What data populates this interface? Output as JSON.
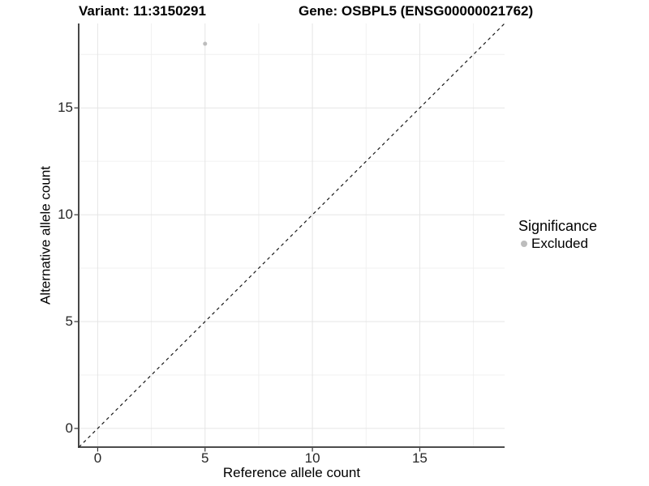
{
  "colors": {
    "background": "#ffffff",
    "axis_line": "#333333",
    "tick_mark": "#333333",
    "grid_major": "#e5e5e5",
    "grid_minor": "#f0f0f0",
    "identity_line": "#1a1a1a",
    "point_excluded": "#bdbdbd",
    "text": "#000000"
  },
  "chart_data": {
    "type": "scatter",
    "title_left": "Variant: 11:3150291",
    "title_right": "Gene: OSBPL5 (ENSG00000021762)",
    "xlabel": "Reference allele count",
    "ylabel": "Alternative allele count",
    "xlim": [
      -0.885,
      18.95
    ],
    "ylim": [
      -0.875,
      18.95
    ],
    "xticks": [
      0,
      5,
      10,
      15
    ],
    "yticks": [
      0,
      5,
      10,
      15
    ],
    "xticks_minor": [
      2.5,
      7.5,
      12.5,
      17.5
    ],
    "yticks_minor": [
      2.5,
      7.5,
      12.5,
      17.5
    ],
    "grid": "major+minor",
    "points": [
      {
        "x": 5,
        "y": 18,
        "series": "Excluded",
        "color": "#bdbdbd"
      }
    ],
    "identity_line": {
      "slope": 1,
      "intercept": 0,
      "style": "dashed",
      "color": "#1a1a1a"
    },
    "legend": {
      "title": "Significance",
      "position": "right",
      "entries": [
        {
          "label": "Excluded",
          "color": "#bdbdbd",
          "marker": "circle"
        }
      ]
    }
  }
}
